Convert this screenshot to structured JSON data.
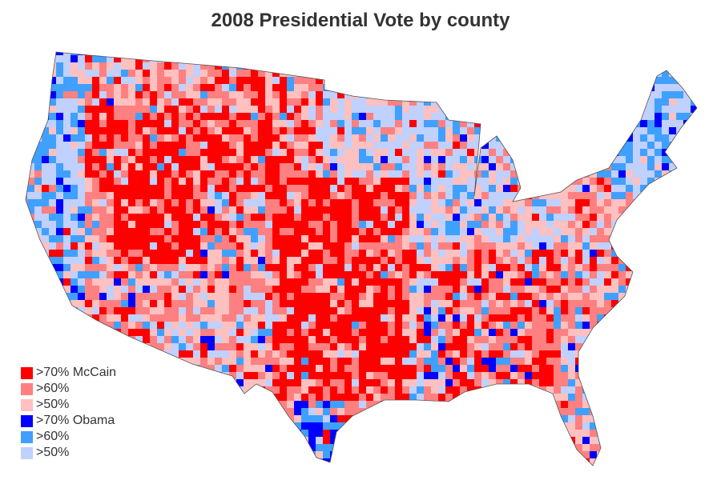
{
  "title": "2008 Presidential Vote by county",
  "legend": [
    {
      "label": ">70% McCain",
      "color": "#ff0000"
    },
    {
      "label": ">60%",
      "color": "#ff8080"
    },
    {
      "label": ">50%",
      "color": "#ffc0c0"
    },
    {
      "label": ">70% Obama",
      "color": "#0000ff"
    },
    {
      "label": ">60%",
      "color": "#40a0ff"
    },
    {
      "label": ">50%",
      "color": "#c0d0ff"
    }
  ]
}
